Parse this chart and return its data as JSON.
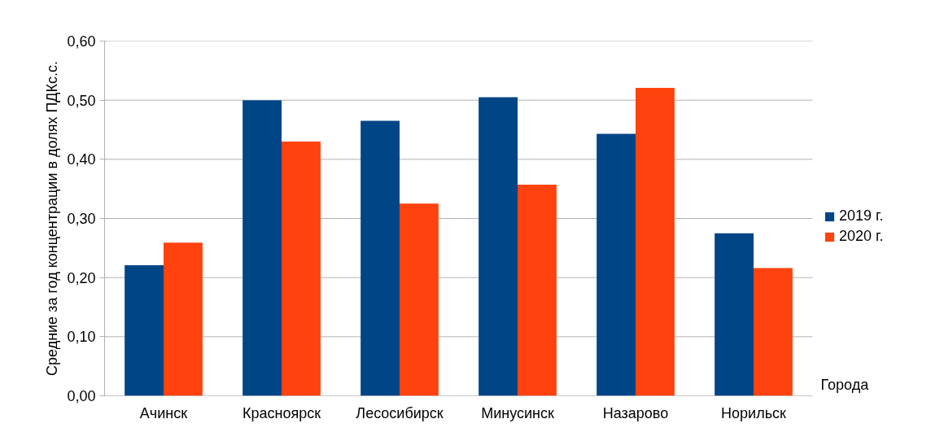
{
  "chart_data": {
    "type": "bar",
    "xlabel": "Города",
    "ylabel": "Средние за год концентрации в долях ПДКс.с.",
    "categories": [
      "Ачинск",
      "Красноярск",
      "Лесосибирск",
      "Минусинск",
      "Назарово",
      "Норильск"
    ],
    "series": [
      {
        "name": "2019 г.",
        "color": "#004586",
        "values": [
          0.221,
          0.5,
          0.465,
          0.505,
          0.443,
          0.275
        ]
      },
      {
        "name": "2020 г.",
        "color": "#ff420e",
        "values": [
          0.259,
          0.43,
          0.325,
          0.357,
          0.521,
          0.216
        ]
      }
    ],
    "ylim": [
      0,
      0.6
    ],
    "yticks": [
      {
        "value": 0,
        "label": "0,00"
      },
      {
        "value": 0.1,
        "label": "0,10"
      },
      {
        "value": 0.2,
        "label": "0,20"
      },
      {
        "value": 0.3,
        "label": "0,30"
      },
      {
        "value": 0.4,
        "label": "0,40"
      },
      {
        "value": 0.5,
        "label": "0,50"
      },
      {
        "value": 0.6,
        "label": "0,60"
      }
    ],
    "grid": "y",
    "legend": "right"
  }
}
